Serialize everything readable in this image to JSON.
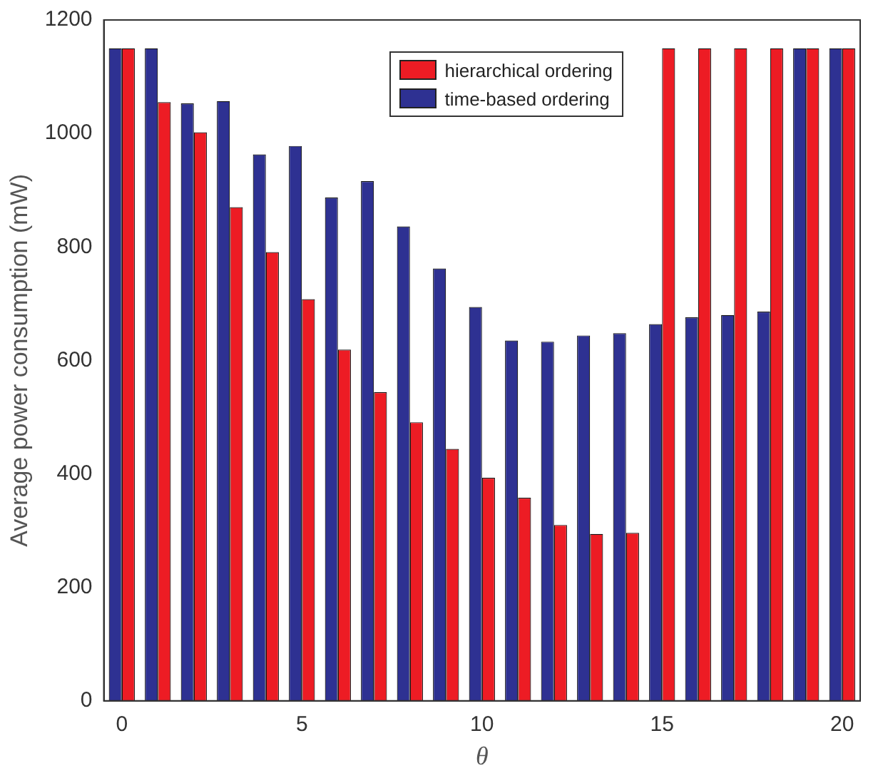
{
  "chart_data": {
    "type": "bar",
    "xlabel": "θ",
    "ylabel": "Average power consumption (mW)",
    "categories": [
      "0",
      null,
      null,
      null,
      null,
      "5",
      null,
      null,
      null,
      null,
      "10",
      null,
      null,
      null,
      null,
      "15",
      null,
      null,
      null,
      null,
      "20"
    ],
    "series": [
      {
        "name": "time-based ordering",
        "color": "#2e3192",
        "values": [
          1150,
          1150,
          1053,
          1057,
          963,
          978,
          887,
          916,
          836,
          762,
          694,
          635,
          633,
          644,
          648,
          664,
          676,
          680,
          686,
          1150,
          1150
        ]
      },
      {
        "name": "hierarchical ordering",
        "color": "#ed1c24",
        "values": [
          1150,
          1055,
          1002,
          870,
          791,
          708,
          619,
          544,
          491,
          444,
          393,
          358,
          310,
          294,
          296,
          1150,
          1150,
          1150,
          1150,
          1150,
          1150
        ]
      }
    ],
    "ylim": [
      0,
      1200
    ],
    "yticks": [
      0,
      200,
      400,
      600,
      800,
      1000,
      1200
    ],
    "grid": false,
    "legend": "top"
  }
}
